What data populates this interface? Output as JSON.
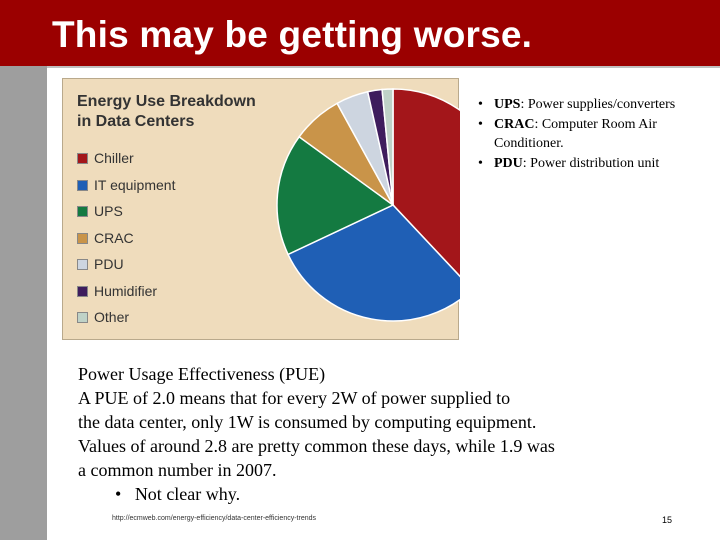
{
  "slide": {
    "title": "This may be getting worse.",
    "page_number": "15",
    "source_url": "http://ecmweb.com/energy-efficiency/data-center-efficiency-trends"
  },
  "notes": [
    {
      "term": "UPS",
      "desc": ": Power supplies/converters"
    },
    {
      "term": "CRAC",
      "desc": ": Computer Room Air Conditioner."
    },
    {
      "term": "PDU",
      "desc": ": Power distribution unit"
    }
  ],
  "body": {
    "heading": "Power Usage Effectiveness (PUE)",
    "line1": "A PUE of 2.0 means that for every 2W of power supplied to",
    "line2": "the data center, only 1W is consumed by computing equipment.",
    "line3": "Values of around 2.8 are pretty common these days, while 1.9 was",
    "line4": "a common number in 2007.",
    "bullet": "Not clear why."
  },
  "chart_data": {
    "type": "pie",
    "title": "Energy Use Breakdown in Data Centers",
    "title_line1": "Energy Use Breakdown",
    "title_line2": "in Data Centers",
    "series": [
      {
        "name": "Chiller",
        "value": 38,
        "color": "#a3161a"
      },
      {
        "name": "IT equipment",
        "value": 30,
        "color": "#1f5fb5"
      },
      {
        "name": "UPS",
        "value": 17,
        "color": "#147a41"
      },
      {
        "name": "CRAC",
        "value": 7,
        "color": "#c99449"
      },
      {
        "name": "PDU",
        "value": 4.5,
        "color": "#cdd5e0"
      },
      {
        "name": "Humidifier",
        "value": 2,
        "color": "#3e1d5d"
      },
      {
        "name": "Other",
        "value": 1.5,
        "color": "#bfd2c7"
      }
    ],
    "start_angle_deg": 0,
    "direction": "clockwise"
  }
}
